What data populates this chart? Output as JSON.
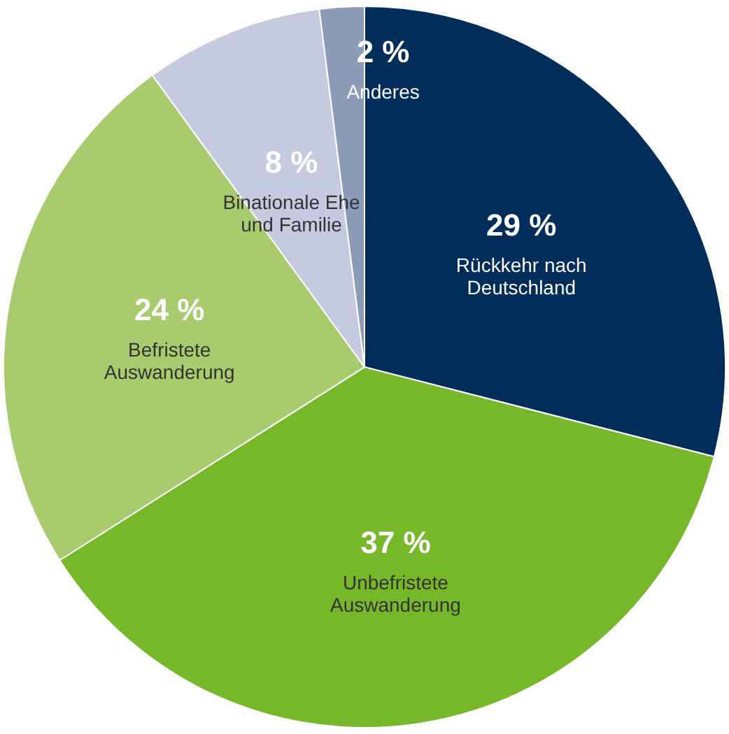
{
  "chart_data": {
    "type": "pie",
    "categories": [
      "Rückkehr nach\nDeutschland",
      "Unbefristete\nAuswanderung",
      "Befristete\nAuswanderung",
      "Binationale Ehe\nund Familie",
      "Anderes"
    ],
    "values": [
      29,
      37,
      24,
      8,
      2
    ],
    "value_labels": [
      "29 %",
      "37 %",
      "24 %",
      "8 %",
      "2 %"
    ],
    "colors": [
      "#002d5a",
      "#76b82a",
      "#a8cb6e",
      "#c5cade",
      "#8c9bb8"
    ]
  }
}
